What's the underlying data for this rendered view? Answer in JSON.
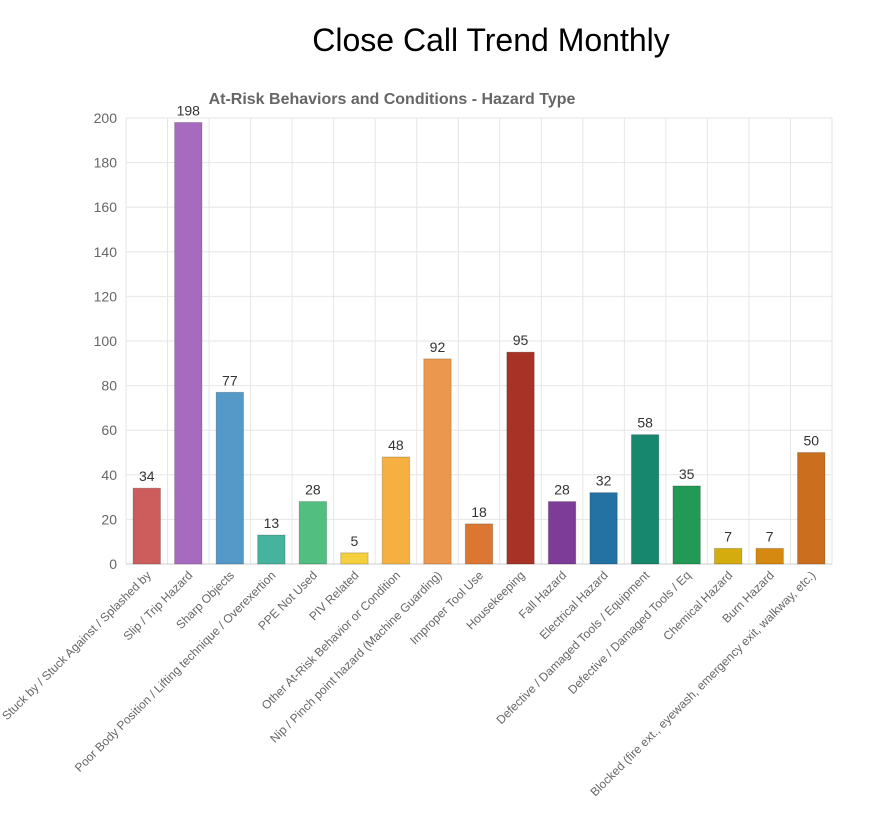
{
  "page_title": "Close Call Trend Monthly",
  "chart_data": {
    "type": "bar",
    "title": "At-Risk Behaviors and Conditions - Hazard Type",
    "xlabel": "",
    "ylabel": "",
    "ylim": [
      0,
      200
    ],
    "yticks": [
      0,
      20,
      40,
      60,
      80,
      100,
      120,
      140,
      160,
      180,
      200
    ],
    "categories": [
      "Stuck by / Stuck Against / Splashed by",
      "Slip / Trip Hazard",
      "Sharp Objects",
      "Poor Body Position / Lifting technique / Overexertion",
      "PPE Not Used",
      "PIV Related",
      "Other At-Risk Behavior or Condition",
      "Nip / Pinch point hazard (Machine Guarding)",
      "Improper Tool Use",
      "Housekeeping",
      "Fall Hazard",
      "Electrical Hazard",
      "Defective / Damaged Tools / Equipment",
      "Defective / Damaged Tools / Eq",
      "Chemical Hazard",
      "Burn Hazard",
      "Blocked (fire ext., eyewash, emergency exit, walkway, etc.)"
    ],
    "values": [
      34,
      198,
      77,
      13,
      28,
      5,
      48,
      92,
      18,
      95,
      28,
      32,
      58,
      35,
      7,
      7,
      50
    ],
    "colors": [
      "#cd5c5c",
      "#a66bbe",
      "#5499c7",
      "#45b39d",
      "#52be80",
      "#f4d03f",
      "#f5b041",
      "#eb984e",
      "#dc7633",
      "#a93226",
      "#7d3c98",
      "#2471a3",
      "#17876d",
      "#229954",
      "#d4ac0d",
      "#d68910",
      "#ca6f1e"
    ]
  }
}
